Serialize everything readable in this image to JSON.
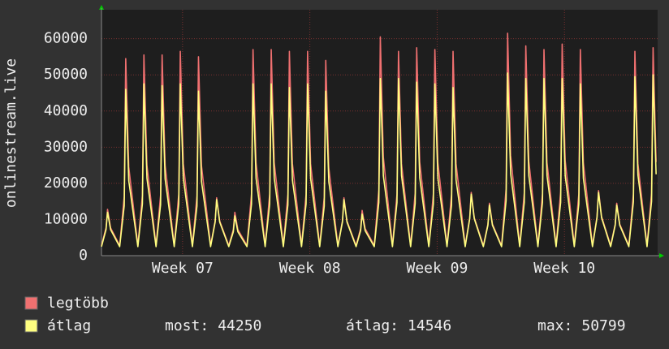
{
  "chart_data": {
    "type": "line",
    "ylabel": "onlinestream.live",
    "xlim": [
      0,
      734
    ],
    "ylim": [
      0,
      68000
    ],
    "yticks": [
      0,
      10000,
      20000,
      30000,
      40000,
      50000,
      60000
    ],
    "xticks": [
      {
        "value": 107,
        "label": "Week 07"
      },
      {
        "value": 275,
        "label": "Week 08"
      },
      {
        "value": 443,
        "label": "Week 09"
      },
      {
        "value": 611,
        "label": "Week 10"
      }
    ],
    "grid": true,
    "x": [
      0,
      6,
      8,
      12,
      24,
      30,
      32,
      36,
      48,
      54,
      56,
      60,
      72,
      78,
      80,
      84,
      96,
      102,
      104,
      108,
      120,
      126,
      128,
      132,
      144,
      150,
      152,
      156,
      168,
      174,
      176,
      180,
      192,
      198,
      200,
      204,
      216,
      222,
      224,
      228,
      240,
      246,
      248,
      252,
      264,
      270,
      272,
      276,
      288,
      294,
      296,
      300,
      312,
      318,
      320,
      324,
      336,
      342,
      344,
      348,
      360,
      366,
      368,
      372,
      384,
      390,
      392,
      396,
      408,
      414,
      416,
      420,
      432,
      438,
      440,
      444,
      456,
      462,
      464,
      468,
      480,
      486,
      488,
      492,
      504,
      510,
      512,
      516,
      528,
      534,
      536,
      540,
      552,
      558,
      560,
      564,
      576,
      582,
      584,
      588,
      600,
      606,
      608,
      612,
      624,
      630,
      632,
      636,
      648,
      654,
      656,
      660,
      672,
      678,
      680,
      684,
      696,
      702,
      704,
      708,
      720,
      726,
      728,
      732
    ],
    "series": [
      {
        "name": "legtöbb",
        "color": "#f07070",
        "values": [
          2800,
          7700,
          12800,
          7700,
          2800,
          16400,
          54500,
          24500,
          2800,
          16700,
          55500,
          25000,
          2800,
          16700,
          55500,
          25000,
          2800,
          17000,
          56500,
          25400,
          2800,
          16500,
          55000,
          24800,
          2800,
          9600,
          16000,
          9600,
          2800,
          7200,
          12000,
          7200,
          2800,
          17100,
          57000,
          25700,
          2800,
          17100,
          57000,
          25700,
          2800,
          17000,
          56500,
          25400,
          2800,
          17000,
          56500,
          25400,
          2800,
          16200,
          54000,
          24300,
          2800,
          9600,
          16000,
          9600,
          2800,
          7500,
          12500,
          7500,
          2800,
          18200,
          60500,
          27200,
          2800,
          17000,
          56500,
          25400,
          2800,
          17300,
          57500,
          25900,
          2800,
          17100,
          57000,
          25700,
          2800,
          17000,
          56500,
          25400,
          2800,
          10500,
          17500,
          10500,
          2800,
          8700,
          14500,
          8700,
          2800,
          18500,
          61500,
          27700,
          2800,
          17400,
          58000,
          26100,
          2800,
          17100,
          57000,
          25700,
          2800,
          17600,
          58500,
          26300,
          2800,
          17100,
          57000,
          25700,
          2800,
          10800,
          18000,
          10800,
          2800,
          8700,
          14500,
          8700,
          2800,
          17000,
          56500,
          25400,
          2800,
          17300,
          57500,
          25900
        ]
      },
      {
        "name": "átlag",
        "color": "#ffff80",
        "values": [
          2500,
          7200,
          12000,
          7200,
          2500,
          13800,
          46000,
          20700,
          2500,
          14300,
          47500,
          21400,
          2500,
          14100,
          47000,
          21200,
          2500,
          14300,
          47500,
          21400,
          2500,
          13700,
          45500,
          20500,
          2500,
          9300,
          15500,
          9300,
          2500,
          6600,
          11000,
          6600,
          2500,
          14300,
          47500,
          21400,
          2500,
          14300,
          47500,
          21400,
          2500,
          14000,
          46500,
          20900,
          2500,
          14300,
          47500,
          21400,
          2500,
          13700,
          45500,
          20500,
          2500,
          9300,
          15500,
          9300,
          2500,
          6900,
          11500,
          6900,
          2500,
          14700,
          49000,
          22100,
          2500,
          14700,
          49000,
          22100,
          2500,
          14400,
          48000,
          21600,
          2500,
          14300,
          47500,
          21400,
          2500,
          14000,
          46500,
          20900,
          2500,
          10200,
          17000,
          10200,
          2500,
          8400,
          14000,
          8400,
          2500,
          15200,
          50500,
          22700,
          2500,
          14700,
          49000,
          22100,
          2500,
          14700,
          49000,
          22100,
          2500,
          14700,
          49000,
          22100,
          2500,
          14300,
          47500,
          21400,
          2500,
          10500,
          17500,
          10500,
          2500,
          8400,
          14000,
          8400,
          2500,
          14900,
          49500,
          22300,
          2500,
          15000,
          50000,
          22500
        ]
      }
    ],
    "stats": [
      {
        "label": "most:",
        "value": 44250
      },
      {
        "label": "átlag:",
        "value": 14546
      },
      {
        "label": "max:",
        "value": 50799
      }
    ]
  }
}
